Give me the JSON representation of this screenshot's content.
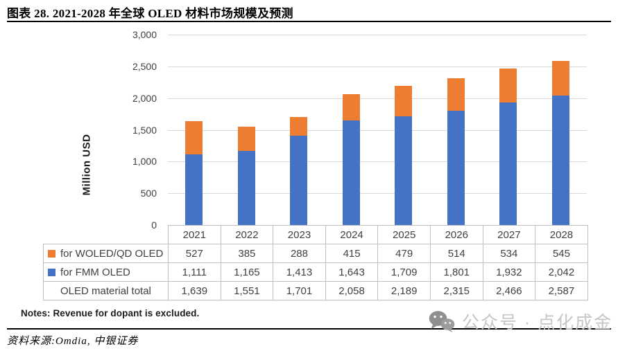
{
  "title": "图表 28. 2021-2028 年全球 OLED 材料市场规模及预测",
  "chart_data": {
    "type": "bar",
    "subtype": "stacked",
    "title": "",
    "xlabel": "",
    "ylabel": "Million  USD",
    "ylim": [
      0,
      3000
    ],
    "y_tick_step": 500,
    "y_ticks": [
      "3,000",
      "2,500",
      "2,000",
      "1,500",
      "1,000",
      "500",
      "0"
    ],
    "grid": "horizontal",
    "legend_position": "in-table-below",
    "categories": [
      "2021",
      "2022",
      "2023",
      "2024",
      "2025",
      "2026",
      "2027",
      "2028"
    ],
    "series": [
      {
        "name": "for FMM OLED",
        "color": "#4472C4",
        "stack_order": "bottom",
        "values": [
          1111,
          1165,
          1413,
          1643,
          1709,
          1801,
          1932,
          2042
        ]
      },
      {
        "name": "for WOLED/QD OLED",
        "color": "#ED7D31",
        "stack_order": "top",
        "values": [
          527,
          385,
          288,
          415,
          479,
          514,
          534,
          545
        ]
      }
    ],
    "totals": {
      "name": "OLED material total",
      "values": [
        1639,
        1551,
        1701,
        2058,
        2189,
        2315,
        2466,
        2587
      ]
    }
  },
  "table": {
    "header": [
      "",
      "2021",
      "2022",
      "2023",
      "2024",
      "2025",
      "2026",
      "2027",
      "2028"
    ],
    "rows": [
      {
        "legend_color": "#ED7D31",
        "label": "for WOLED/QD OLED",
        "values": [
          "527",
          "385",
          "288",
          "415",
          "479",
          "514",
          "534",
          "545"
        ]
      },
      {
        "legend_color": "#4472C4",
        "label": "for FMM OLED",
        "values": [
          "1,111",
          "1,165",
          "1,413",
          "1,643",
          "1,709",
          "1,801",
          "1,932",
          "2,042"
        ]
      },
      {
        "legend_color": "",
        "label": "OLED material total",
        "values": [
          "1,639",
          "1,551",
          "1,701",
          "2,058",
          "2,189",
          "2,315",
          "2,466",
          "2,587"
        ]
      }
    ]
  },
  "notes": "Notes: Revenue for dopant is excluded.",
  "source": "资料来源:Omdia, 中银证券",
  "watermark": {
    "icon": "wechat-icon",
    "text": "公众号 · 点化成金"
  }
}
